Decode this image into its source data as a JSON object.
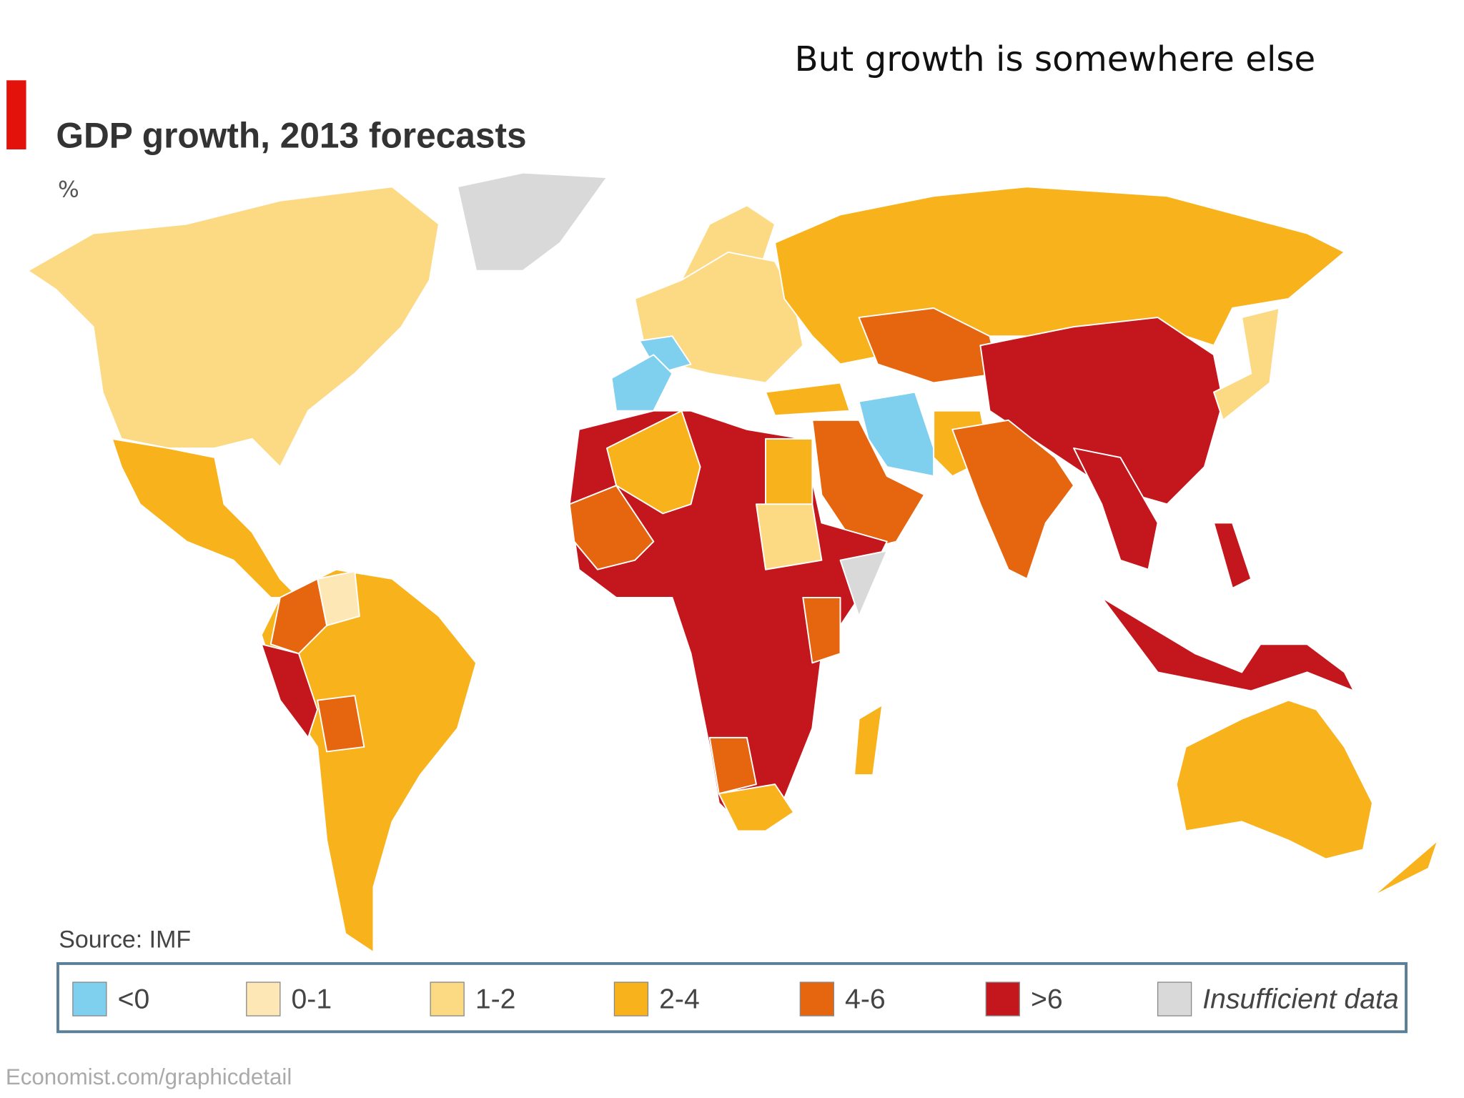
{
  "slide_title": "But growth is somewhere else",
  "map": {
    "title": "GDP growth, 2013 forecasts",
    "unit": "%",
    "source": "Source: IMF",
    "legend": [
      {
        "label": "<0",
        "color": "#7fcfee"
      },
      {
        "label": "0-1",
        "color": "#fde7b4"
      },
      {
        "label": "1-2",
        "color": "#fcd983"
      },
      {
        "label": "2-4",
        "color": "#f8b21c"
      },
      {
        "label": "4-6",
        "color": "#e6650f"
      },
      {
        "label": ">6",
        "color": "#c3161d"
      },
      {
        "label": "Insufficient data",
        "color": "#d9d9d9"
      }
    ],
    "credit": "Economist.com/graphicdetail"
  }
}
